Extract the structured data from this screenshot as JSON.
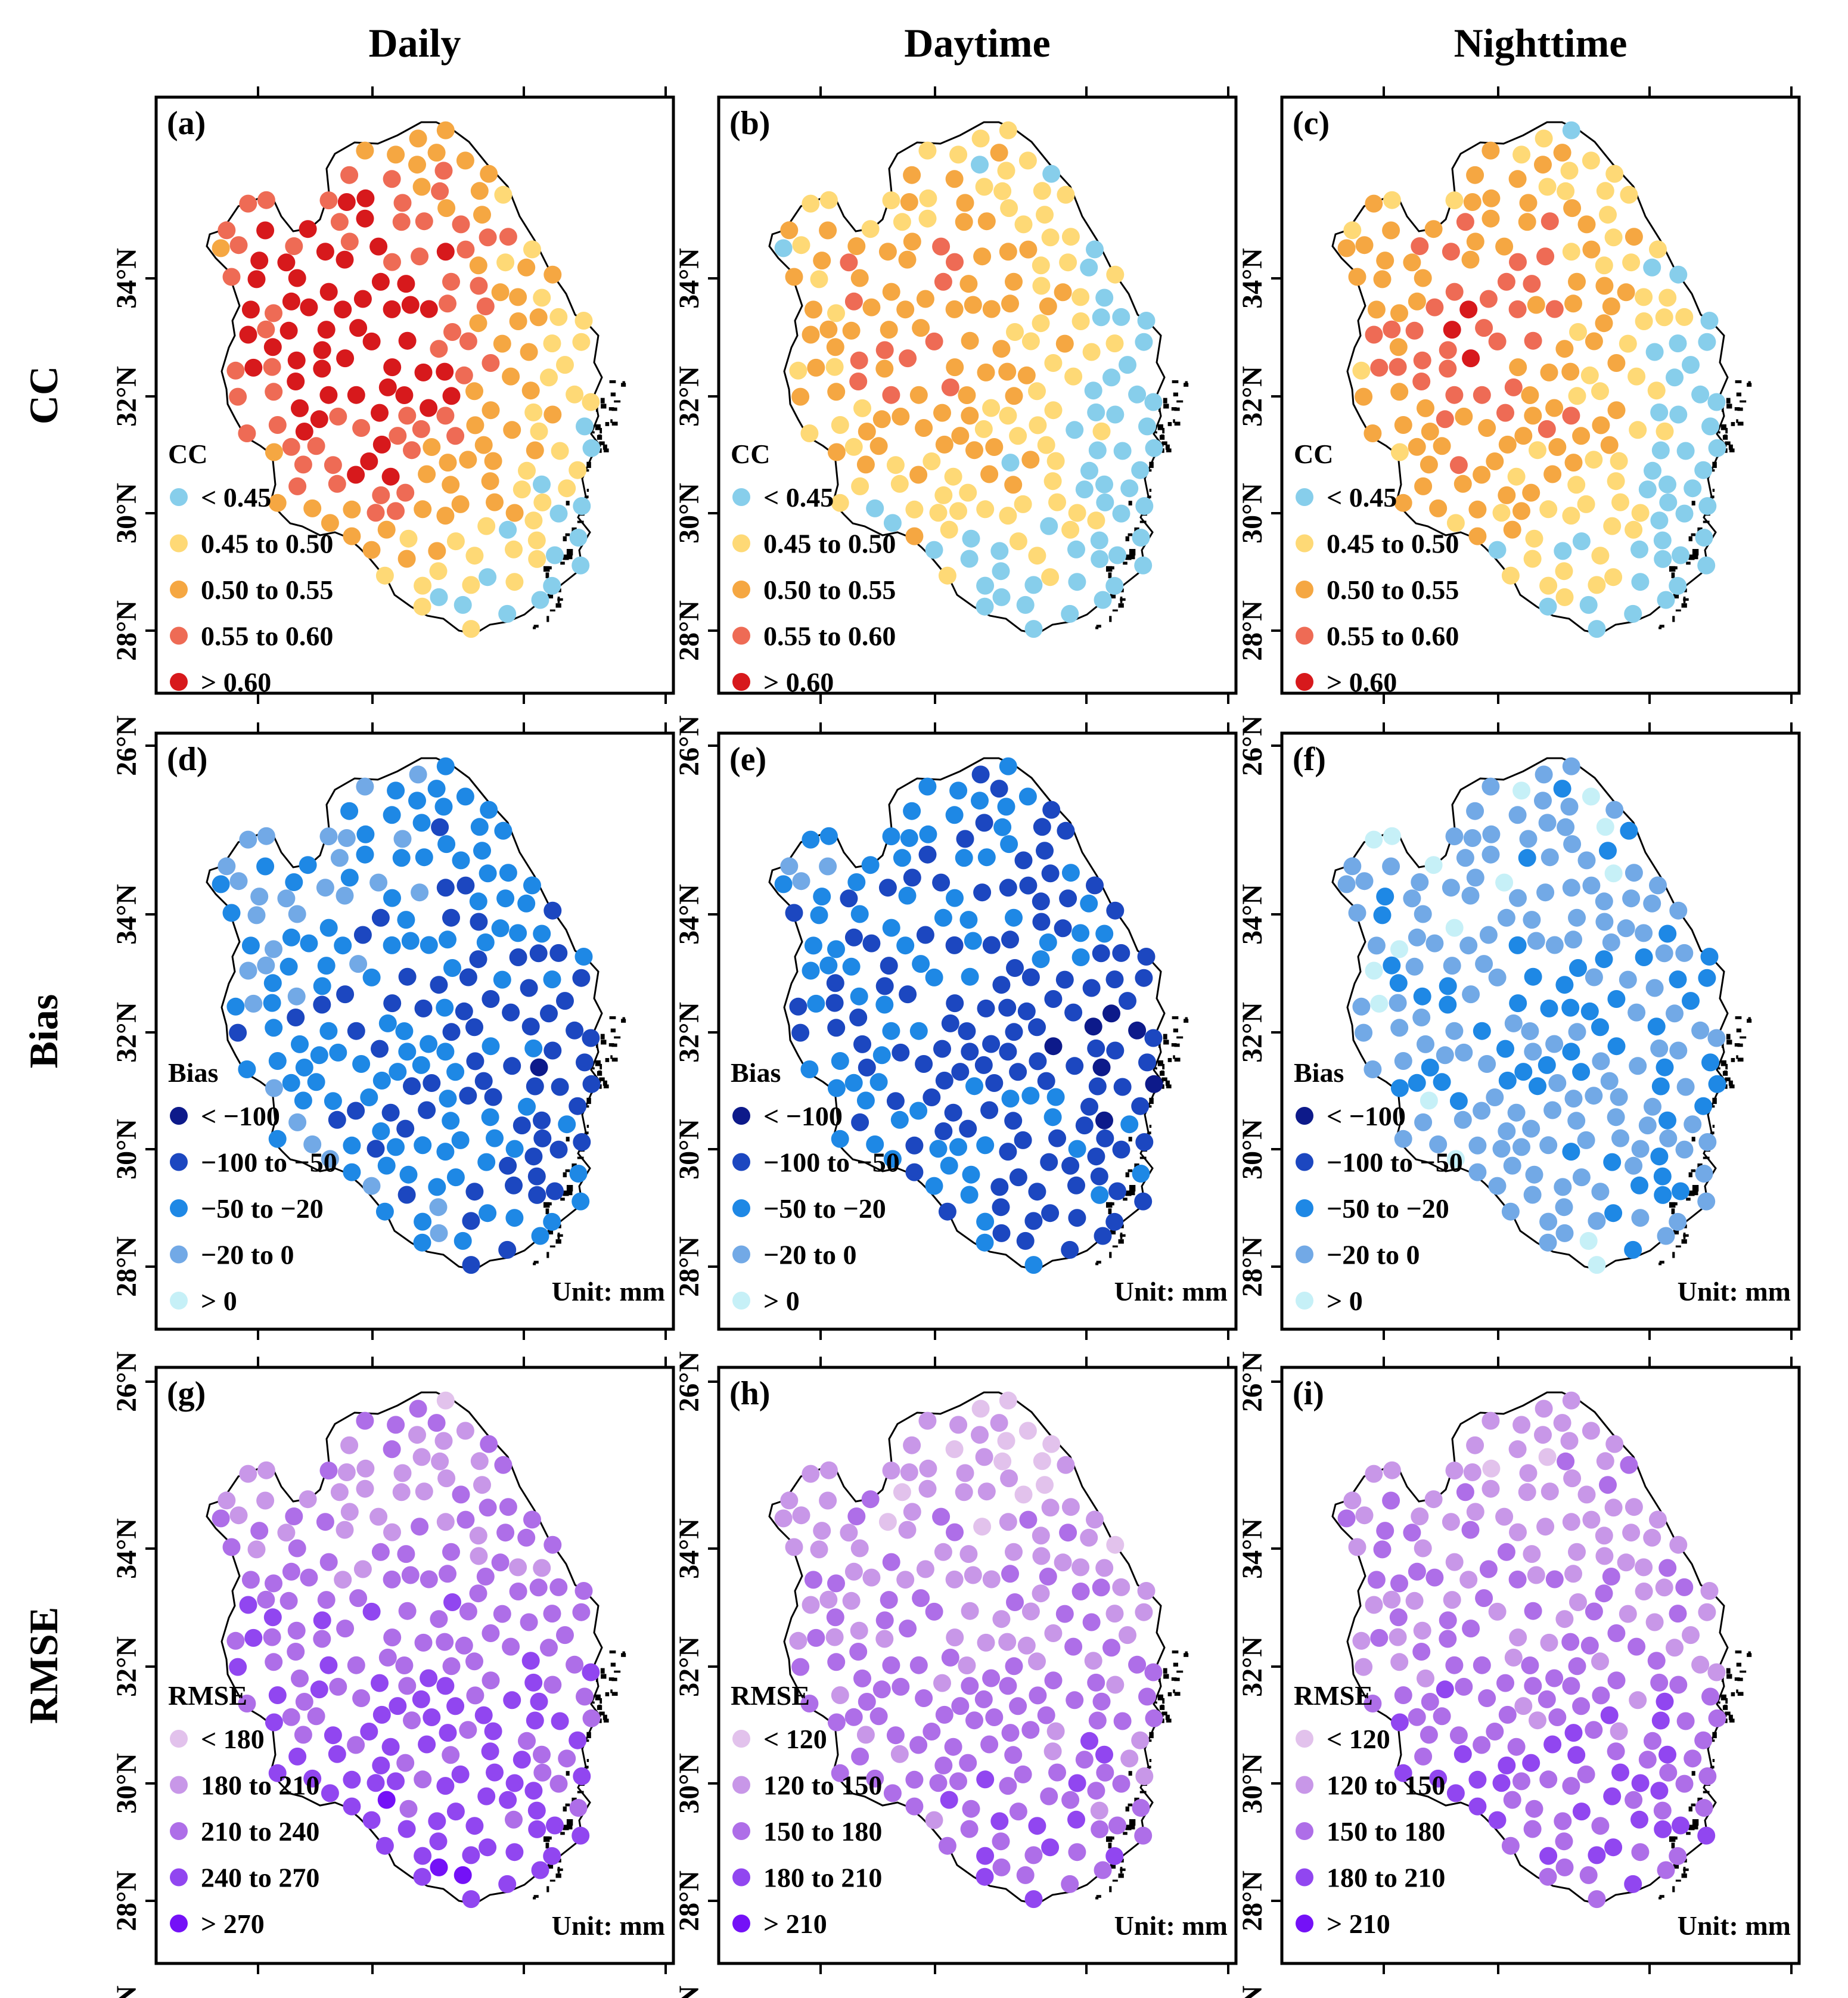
{
  "columns": [
    "Daily",
    "Daytime",
    "Nighttime"
  ],
  "rows": [
    "CC",
    "Bias",
    "RMSE"
  ],
  "lat_ticks": [
    "26°N",
    "28°N",
    "30°N",
    "32°N",
    "34°N"
  ],
  "unit_label": "Unit: mm",
  "panels": [
    {
      "label": "(a)",
      "metric": "CC",
      "scheme": 0,
      "variant": 0,
      "show_unit": false
    },
    {
      "label": "(b)",
      "metric": "CC",
      "scheme": 0,
      "variant": 1,
      "show_unit": false
    },
    {
      "label": "(c)",
      "metric": "CC",
      "scheme": 0,
      "variant": 2,
      "show_unit": false
    },
    {
      "label": "(d)",
      "metric": "Bias",
      "scheme": 1,
      "variant": 0,
      "show_unit": true
    },
    {
      "label": "(e)",
      "metric": "Bias",
      "scheme": 1,
      "variant": 1,
      "show_unit": true
    },
    {
      "label": "(f)",
      "metric": "Bias",
      "scheme": 1,
      "variant": 2,
      "show_unit": true
    },
    {
      "label": "(g)",
      "metric": "RMSE",
      "scheme": 2,
      "variant": 0,
      "show_unit": true
    },
    {
      "label": "(h)",
      "metric": "RMSE",
      "scheme": 3,
      "variant": 1,
      "show_unit": true
    },
    {
      "label": "(i)",
      "metric": "RMSE",
      "scheme": 3,
      "variant": 2,
      "show_unit": true
    }
  ],
  "legends": [
    {
      "title": "CC",
      "classes": [
        "< 0.45",
        "0.45 to 0.50",
        "0.50 to 0.55",
        "0.55 to 0.60",
        "> 0.60"
      ],
      "colors": [
        "#87ceeb",
        "#fed976",
        "#f5a742",
        "#ee6b55",
        "#d7191c"
      ]
    },
    {
      "title": "Bias",
      "classes": [
        "< −100",
        "−100 to −50",
        "−50 to −20",
        "−20 to 0",
        "> 0"
      ],
      "colors": [
        "#0d1a8a",
        "#1c47c0",
        "#1e88e5",
        "#72a9e6",
        "#c6f0f7"
      ]
    },
    {
      "title": "RMSE",
      "classes": [
        "< 180",
        "180 to 210",
        "210 to 240",
        "240 to 270",
        "> 270"
      ],
      "colors": [
        "#e2c2ec",
        "#c897e8",
        "#ae6ee8",
        "#9146f0",
        "#7411f7"
      ]
    },
    {
      "title": "RMSE",
      "classes": [
        "< 120",
        "120 to 150",
        "150 to 180",
        "180 to 210",
        "> 210"
      ],
      "colors": [
        "#e2c2ec",
        "#c897e8",
        "#ae6ee8",
        "#9146f0",
        "#7411f7"
      ]
    }
  ]
}
